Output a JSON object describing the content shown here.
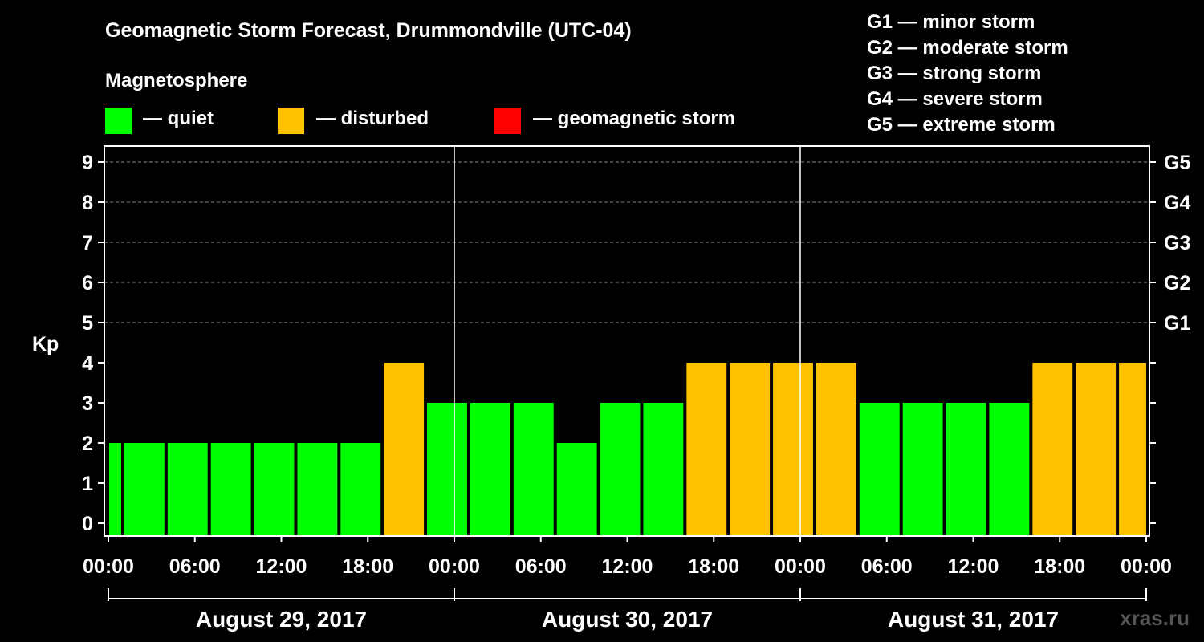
{
  "title": "Geomagnetic Storm Forecast, Drummondville (UTC-04)",
  "magnetosphere_label": "Magnetosphere",
  "legend": [
    {
      "label": "— quiet",
      "color": "#00ff00"
    },
    {
      "label": "— disturbed",
      "color": "#ffc000"
    },
    {
      "label": "— geomagnetic storm",
      "color": "#ff0000"
    }
  ],
  "g_scale": [
    "G1 — minor storm",
    "G2 — moderate storm",
    "G3 — strong storm",
    "G4 — severe storm",
    "G5 — extreme storm"
  ],
  "watermark": "xras.ru",
  "chart_data": {
    "type": "bar",
    "title": "Geomagnetic Storm Forecast, Drummondville (UTC-04)",
    "ylabel": "Kp",
    "xlabel": "",
    "ylim": [
      0,
      9
    ],
    "y_ticks": [
      "0",
      "1",
      "2",
      "3",
      "4",
      "5",
      "6",
      "7",
      "8",
      "9"
    ],
    "right_ticks": [
      {
        "kp": 5,
        "label": "G1"
      },
      {
        "kp": 6,
        "label": "G2"
      },
      {
        "kp": 7,
        "label": "G3"
      },
      {
        "kp": 8,
        "label": "G4"
      },
      {
        "kp": 9,
        "label": "G5"
      }
    ],
    "x_range_hours": [
      0,
      72
    ],
    "x_ticks": [
      "00:00",
      "06:00",
      "12:00",
      "18:00",
      "00:00",
      "06:00",
      "12:00",
      "18:00",
      "00:00",
      "06:00",
      "12:00",
      "18:00",
      "00:00"
    ],
    "days": [
      "August 29, 2017",
      "August 30, 2017",
      "August 31, 2017"
    ],
    "bar_interval_hours": 3,
    "first_bar_start_hour": -2,
    "values": [
      2,
      2,
      2,
      2,
      2,
      2,
      2,
      4,
      3,
      3,
      3,
      2,
      3,
      3,
      4,
      4,
      4,
      4,
      3,
      3,
      3,
      3,
      4,
      4,
      4
    ],
    "thresholds": {
      "disturbed": 4,
      "storm": 5
    },
    "colors": {
      "quiet": "#00ff00",
      "disturbed": "#ffc000",
      "storm": "#ff0000"
    },
    "grid": true
  }
}
